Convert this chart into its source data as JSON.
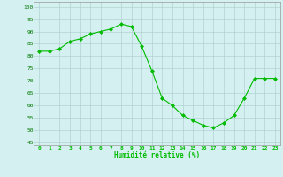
{
  "x": [
    0,
    1,
    2,
    3,
    4,
    5,
    6,
    7,
    8,
    9,
    10,
    11,
    12,
    13,
    14,
    15,
    16,
    17,
    18,
    19,
    20,
    21,
    22,
    23
  ],
  "y": [
    82,
    82,
    83,
    86,
    87,
    89,
    90,
    91,
    93,
    92,
    84,
    74,
    63,
    60,
    56,
    54,
    52,
    51,
    53,
    56,
    63,
    71,
    71,
    71
  ],
  "line_color": "#00bb00",
  "marker": "D",
  "marker_size": 2.0,
  "bg_color": "#d4f0f0",
  "grid_color": "#aacccc",
  "xlabel": "Humidité relative (%)",
  "xlabel_color": "#00bb00",
  "ylabel_ticks": [
    45,
    50,
    55,
    60,
    65,
    70,
    75,
    80,
    85,
    90,
    95,
    100
  ],
  "xlim": [
    -0.5,
    23.5
  ],
  "ylim": [
    44,
    102
  ],
  "figsize": [
    3.2,
    2.0
  ],
  "dpi": 100
}
